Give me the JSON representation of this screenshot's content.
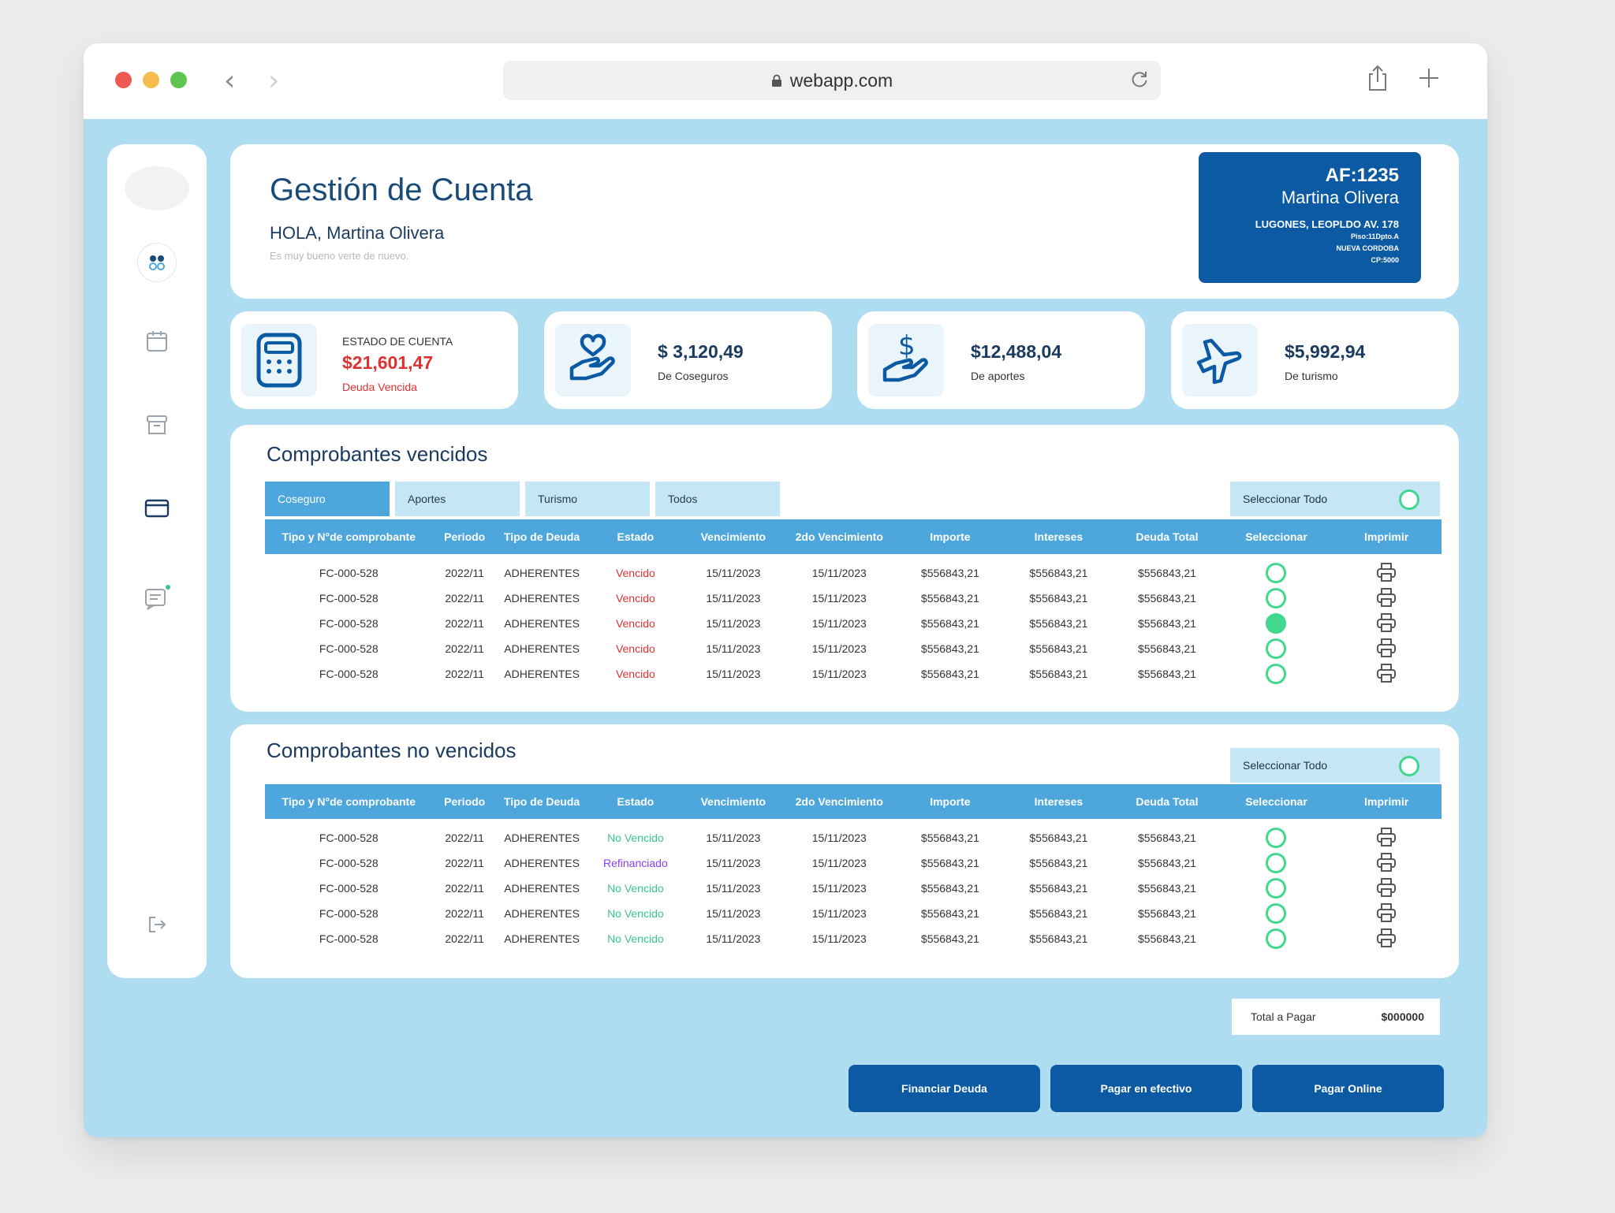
{
  "browser": {
    "url": "webapp.com",
    "colors": {
      "close": "#ee5a52",
      "minimize": "#f5bd4f",
      "maximize": "#5dc44f"
    }
  },
  "header": {
    "title": "Gestión de Cuenta",
    "greeting": "HOLA, Martina Olivera",
    "subtext": "Es muy bueno verte de nuevo.",
    "affiliate": {
      "id": "AF:1235",
      "name": "Martina Olivera",
      "address": "LUGONES, LEOPLDO AV. 178",
      "floor": "Piso:11Dpto.A",
      "city": "NUEVA CORDOBA",
      "postal": "CP:5000"
    }
  },
  "stats": {
    "account": {
      "label": "ESTADO DE CUENTA",
      "value": "$21,601,47",
      "sub": "Deuda Vencida",
      "icon": "calculator-icon"
    },
    "coseguros": {
      "value": "$ 3,120,49",
      "sub": "De Coseguros",
      "icon": "heart-hand-icon"
    },
    "aportes": {
      "value": "$12,488,04",
      "sub": "De aportes",
      "icon": "dollar-hand-icon"
    },
    "turismo": {
      "value": "$5,992,94",
      "sub": "De turismo",
      "icon": "airplane-icon"
    }
  },
  "overdue": {
    "title": "Comprobantes vencidos",
    "tabs": [
      "Coseguro",
      "Aportes",
      "Turismo",
      "Todos"
    ],
    "select_all": "Seleccionar Todo",
    "columns": [
      "Tipo y N°de comprobante",
      "Periodo",
      "Tipo de Deuda",
      "Estado",
      "Vencimiento",
      "2do Vencimiento",
      "Importe",
      "Intereses",
      "Deuda Total",
      "Seleccionar",
      "Imprimir"
    ],
    "rows": [
      {
        "comprobante": "FC-000-528",
        "periodo": "2022/11",
        "tipo": "ADHERENTES",
        "estado": "Vencido",
        "venc": "15/11/2023",
        "venc2": "15/11/2023",
        "importe": "$556843,21",
        "intereses": "$556843,21",
        "total": "$556843,21",
        "selected": false
      },
      {
        "comprobante": "FC-000-528",
        "periodo": "2022/11",
        "tipo": "ADHERENTES",
        "estado": "Vencido",
        "venc": "15/11/2023",
        "venc2": "15/11/2023",
        "importe": "$556843,21",
        "intereses": "$556843,21",
        "total": "$556843,21",
        "selected": false
      },
      {
        "comprobante": "FC-000-528",
        "periodo": "2022/11",
        "tipo": "ADHERENTES",
        "estado": "Vencido",
        "venc": "15/11/2023",
        "venc2": "15/11/2023",
        "importe": "$556843,21",
        "intereses": "$556843,21",
        "total": "$556843,21",
        "selected": true
      },
      {
        "comprobante": "FC-000-528",
        "periodo": "2022/11",
        "tipo": "ADHERENTES",
        "estado": "Vencido",
        "venc": "15/11/2023",
        "venc2": "15/11/2023",
        "importe": "$556843,21",
        "intereses": "$556843,21",
        "total": "$556843,21",
        "selected": false
      },
      {
        "comprobante": "FC-000-528",
        "periodo": "2022/11",
        "tipo": "ADHERENTES",
        "estado": "Vencido",
        "venc": "15/11/2023",
        "venc2": "15/11/2023",
        "importe": "$556843,21",
        "intereses": "$556843,21",
        "total": "$556843,21",
        "selected": false
      }
    ]
  },
  "pending": {
    "title": "Comprobantes no vencidos",
    "select_all": "Seleccionar Todo",
    "columns": [
      "Tipo y N°de comprobante",
      "Periodo",
      "Tipo de Deuda",
      "Estado",
      "Vencimiento",
      "2do Vencimiento",
      "Importe",
      "Intereses",
      "Deuda Total",
      "Seleccionar",
      "Imprimir"
    ],
    "rows": [
      {
        "comprobante": "FC-000-528",
        "periodo": "2022/11",
        "tipo": "ADHERENTES",
        "estado": "No Vencido",
        "venc": "15/11/2023",
        "venc2": "15/11/2023",
        "importe": "$556843,21",
        "intereses": "$556843,21",
        "total": "$556843,21",
        "selected": false
      },
      {
        "comprobante": "FC-000-528",
        "periodo": "2022/11",
        "tipo": "ADHERENTES",
        "estado": "Refinanciado",
        "venc": "15/11/2023",
        "venc2": "15/11/2023",
        "importe": "$556843,21",
        "intereses": "$556843,21",
        "total": "$556843,21",
        "selected": false
      },
      {
        "comprobante": "FC-000-528",
        "periodo": "2022/11",
        "tipo": "ADHERENTES",
        "estado": "No Vencido",
        "venc": "15/11/2023",
        "venc2": "15/11/2023",
        "importe": "$556843,21",
        "intereses": "$556843,21",
        "total": "$556843,21",
        "selected": false
      },
      {
        "comprobante": "FC-000-528",
        "periodo": "2022/11",
        "tipo": "ADHERENTES",
        "estado": "No Vencido",
        "venc": "15/11/2023",
        "venc2": "15/11/2023",
        "importe": "$556843,21",
        "intereses": "$556843,21",
        "total": "$556843,21",
        "selected": false
      },
      {
        "comprobante": "FC-000-528",
        "periodo": "2022/11",
        "tipo": "ADHERENTES",
        "estado": "No Vencido",
        "venc": "15/11/2023",
        "venc2": "15/11/2023",
        "importe": "$556843,21",
        "intereses": "$556843,21",
        "total": "$556843,21",
        "selected": false
      }
    ]
  },
  "total": {
    "label": "Total a Pagar",
    "value": "$000000"
  },
  "actions": {
    "finance": "Financiar Deuda",
    "cash": "Pagar en efectivo",
    "online": "Pagar Online"
  },
  "colors": {
    "primary": "#0b5aa3",
    "accent": "#4ea7dc",
    "background": "#aedcf0",
    "overdue": "#e03131",
    "ok": "#37c786",
    "refinanced": "#8a3ff0",
    "radio": "#3fd88e"
  }
}
